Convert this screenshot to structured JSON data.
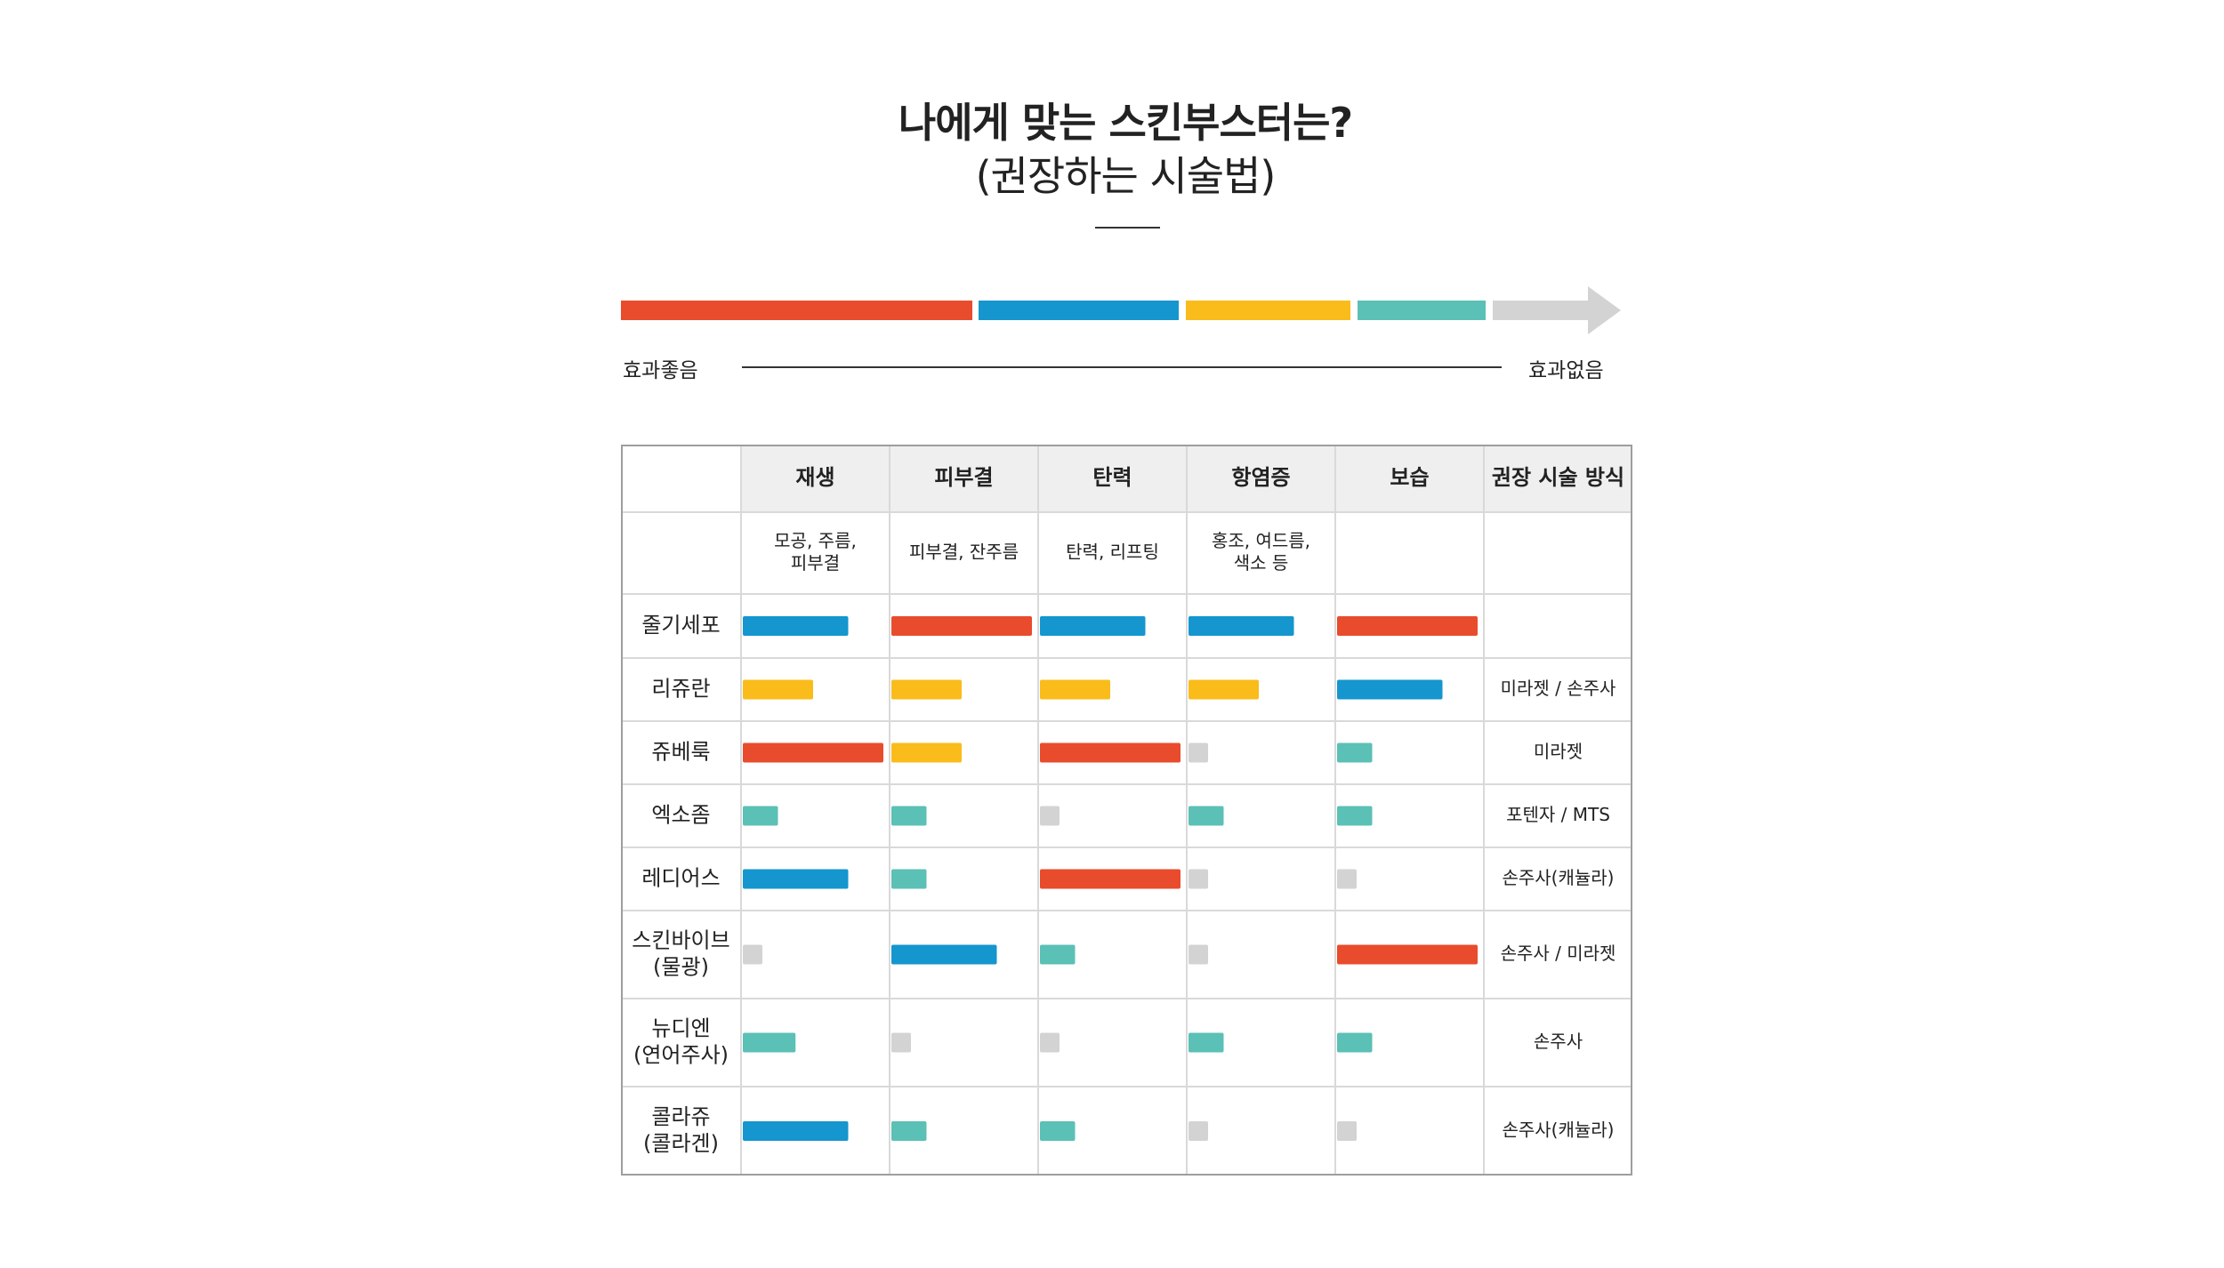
{
  "title": {
    "line1": "나에게 맞는 스킨부스터는?",
    "line2": "(권장하는 시술법)"
  },
  "scale": {
    "left_label": "효과좋음",
    "right_label": "효과없음",
    "levels": [
      {
        "level": 4,
        "color": "#E84C2C"
      },
      {
        "level": 3,
        "color": "#1596CE"
      },
      {
        "level": 2,
        "color": "#F9BC1B"
      },
      {
        "level": 1,
        "color": "#5BC0B5"
      },
      {
        "level": 0,
        "color": "#D3D3D3"
      }
    ]
  },
  "colors": {
    "level4": "#E84C2C",
    "level3": "#1596CE",
    "level2": "#F9BC1B",
    "level1": "#5BC0B5",
    "level0": "#D3D3D3"
  },
  "chart_data": {
    "type": "table",
    "columns": [
      {
        "name": "재생",
        "desc": [
          "모공, 주름,",
          "피부결"
        ]
      },
      {
        "name": "피부결",
        "desc": [
          "피부결, 잔주름"
        ]
      },
      {
        "name": "탄력",
        "desc": [
          "탄력, 리프팅"
        ]
      },
      {
        "name": "항염증",
        "desc": [
          "홍조, 여드름,",
          "색소 등"
        ]
      },
      {
        "name": "보습",
        "desc": []
      }
    ],
    "method_header": "권장 시술 방식",
    "rows": [
      {
        "name": [
          "줄기세포"
        ],
        "levels": [
          3,
          4,
          3,
          3,
          4
        ],
        "method": ""
      },
      {
        "name": [
          "리쥬란"
        ],
        "levels": [
          2,
          2,
          2,
          2,
          3
        ],
        "method": "미라젯 / 손주사"
      },
      {
        "name": [
          "쥬베룩"
        ],
        "levels": [
          4,
          2,
          4,
          0,
          1
        ],
        "method": "미라젯"
      },
      {
        "name": [
          "엑소좀"
        ],
        "levels": [
          1,
          1,
          0,
          1,
          1
        ],
        "method": "포텐자 / MTS"
      },
      {
        "name": [
          "레디어스"
        ],
        "levels": [
          3,
          1,
          4,
          0,
          0
        ],
        "method": "손주사(캐뉼라)"
      },
      {
        "name": [
          "스킨바이브",
          "(물광)"
        ],
        "levels": [
          0,
          3,
          1,
          0,
          4
        ],
        "method": "손주사 / 미라젯"
      },
      {
        "name": [
          "뉴디엔",
          "(연어주사)"
        ],
        "levels": [
          1.5,
          0,
          0,
          1,
          1
        ],
        "method": "손주사"
      },
      {
        "name": [
          "콜라쥬",
          "(콜라겐)"
        ],
        "levels": [
          3,
          1,
          1,
          0,
          0
        ],
        "method": "손주사(캐뉼라)"
      }
    ]
  }
}
